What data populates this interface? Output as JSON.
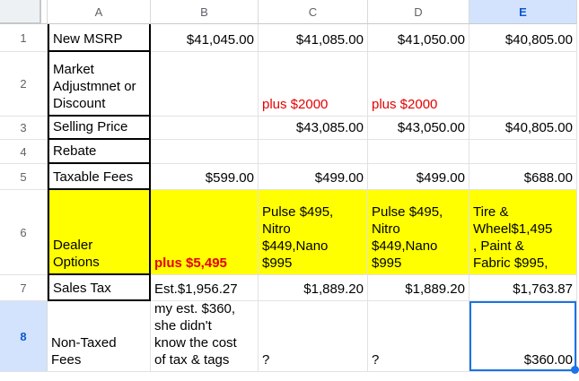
{
  "columns": {
    "a": "A",
    "b": "B",
    "c": "C",
    "d": "D",
    "e": "E"
  },
  "row_numbers": {
    "r1": "1",
    "r2": "2",
    "r3": "3",
    "r4": "4",
    "r5": "5",
    "r6": "6",
    "r7": "7",
    "r8": "8"
  },
  "cells": {
    "a1": "New MSRP",
    "b1": "$41,045.00",
    "c1": "$41,085.00",
    "d1": "$41,050.00",
    "e1": "$40,805.00",
    "a2": "Market Adjustmnet or Discount",
    "c2": "plus $2000",
    "d2": "plus $2000",
    "a3": "Selling Price",
    "c3": "$43,085.00",
    "d3": "$43,050.00",
    "e3": "$40,805.00",
    "a4": "Rebate",
    "a5": "Taxable Fees",
    "b5": "$599.00",
    "c5": "$499.00",
    "d5": "$499.00",
    "e5": "$688.00",
    "a6": "Dealer Options",
    "b6": "plus $5,495",
    "c6": "Pulse $495, Nitro $449,Nano $995",
    "d6": "Pulse $495, Nitro $449,Nano $995",
    "e6": "Tire & Wheel$1,495 , Paint & Fabric $995,",
    "a7": "Sales Tax",
    "b7": "Est.$1,956.27",
    "c7": "$1,889.20",
    "d7": "$1,889.20",
    "e7": "$1,763.87",
    "a8": "Non-Taxed Fees",
    "b8": "my est. $360, she didn't know the cost of tax & tags",
    "c8": "?",
    "d8": "?",
    "e8": "$360.00"
  },
  "selection": {
    "active_cell": "E8",
    "selected_column": "E",
    "selected_row": "8"
  },
  "colors": {
    "selection_blue": "#1a73e8",
    "selected_header_bg": "#d3e3fd",
    "selected_header_text": "#0b57d0",
    "highlight_yellow": "#ffff00",
    "alert_red": "#e60000",
    "cell_border_black": "#000000",
    "gridline": "#e2e2e2",
    "header_text_gray": "#5f6368"
  }
}
